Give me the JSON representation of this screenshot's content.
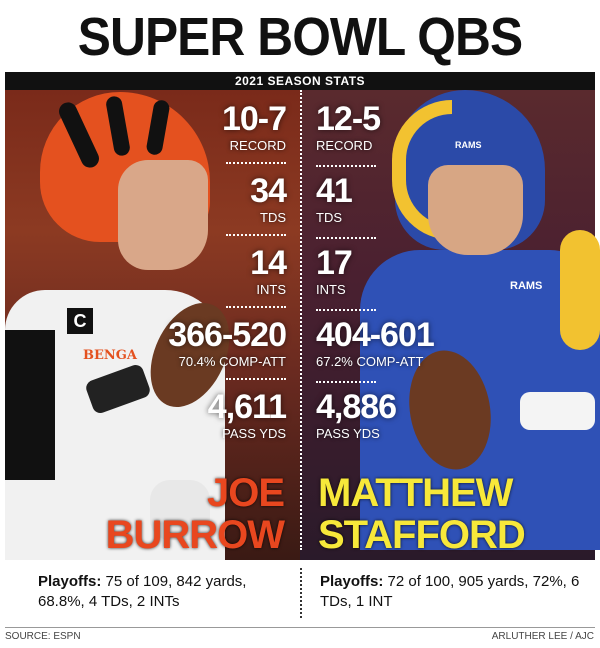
{
  "title": "SUPER BOWL QBS",
  "subtitle": "2021 SEASON STATS",
  "players": [
    {
      "name_line1": "JOE",
      "name_line2": "BURROW",
      "stats": [
        {
          "value": "10-7",
          "label": "RECORD"
        },
        {
          "value": "34",
          "label": "TDS"
        },
        {
          "value": "14",
          "label": "INTS"
        },
        {
          "value": "366-520",
          "label": "70.4% COMP-ATT"
        },
        {
          "value": "4,611",
          "label": "PASS YDS"
        }
      ],
      "playoffs_label": "Playoffs:",
      "playoffs_text": "75 of 109, 842 yards, 68.8%, 4 TDs, 2 INTs",
      "name_color": "#e8471f"
    },
    {
      "name_line1": "MATTHEW",
      "name_line2": "STAFFORD",
      "stats": [
        {
          "value": "12-5",
          "label": "RECORD"
        },
        {
          "value": "41",
          "label": "TDS"
        },
        {
          "value": "17",
          "label": "INTS"
        },
        {
          "value": "404-601",
          "label": "67.2% COMP-ATT"
        },
        {
          "value": "4,886",
          "label": "PASS YDS"
        }
      ],
      "playoffs_label": "Playoffs:",
      "playoffs_text": "72 of 100, 905 yards, 72%, 6 TDs, 1 INT",
      "name_color": "#f7e83a"
    }
  ],
  "photo_labels": {
    "left_team_text": "BENGA",
    "left_patch": "C",
    "right_helmet_text": "RAMS",
    "right_chest_text": "RAMS"
  },
  "footer": {
    "source": "SOURCE: ESPN",
    "credit": "ARLUTHER LEE / AJC"
  }
}
